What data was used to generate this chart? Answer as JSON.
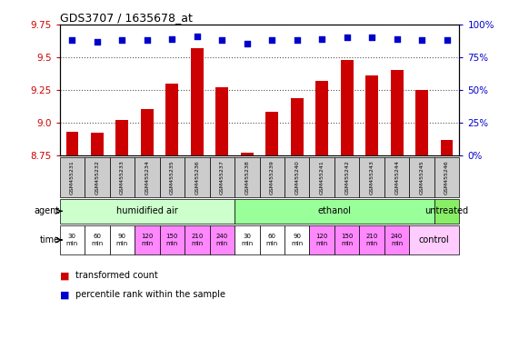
{
  "title": "GDS3707 / 1635678_at",
  "samples": [
    "GSM455231",
    "GSM455232",
    "GSM455233",
    "GSM455234",
    "GSM455235",
    "GSM455236",
    "GSM455237",
    "GSM455238",
    "GSM455239",
    "GSM455240",
    "GSM455241",
    "GSM455242",
    "GSM455243",
    "GSM455244",
    "GSM455245",
    "GSM455246"
  ],
  "bar_values": [
    8.93,
    8.92,
    9.02,
    9.1,
    9.3,
    9.57,
    9.27,
    8.77,
    9.08,
    9.19,
    9.32,
    9.48,
    9.36,
    9.4,
    9.25,
    8.87
  ],
  "percentile_values": [
    88,
    87,
    88,
    88,
    89,
    91,
    88,
    85,
    88,
    88,
    89,
    90,
    90,
    89,
    88,
    88
  ],
  "bar_color": "#cc0000",
  "dot_color": "#0000cc",
  "ylim_left": [
    8.75,
    9.75
  ],
  "ylim_right": [
    0,
    100
  ],
  "yticks_left": [
    8.75,
    9.0,
    9.25,
    9.5,
    9.75
  ],
  "yticks_right": [
    0,
    25,
    50,
    75,
    100
  ],
  "ytick_labels_right": [
    "0%",
    "25%",
    "50%",
    "75%",
    "100%"
  ],
  "agent_groups": [
    {
      "label": "humidified air",
      "start": 0,
      "end": 7,
      "color": "#ccffcc"
    },
    {
      "label": "ethanol",
      "start": 7,
      "end": 15,
      "color": "#99ff99"
    },
    {
      "label": "untreated",
      "start": 15,
      "end": 16,
      "color": "#88ee66"
    }
  ],
  "time_colors": [
    "#ffffff",
    "#ffffff",
    "#ffffff",
    "#ff88ff",
    "#ff88ff",
    "#ff88ff",
    "#ff88ff",
    "#ffffff",
    "#ffffff",
    "#ffffff",
    "#ff88ff",
    "#ff88ff",
    "#ff88ff",
    "#ff88ff",
    "#ffccff",
    "#ffccff"
  ],
  "time_labels": [
    "30\nmin",
    "60\nmin",
    "90\nmin",
    "120\nmin",
    "150\nmin",
    "210\nmin",
    "240\nmin",
    "30\nmin",
    "60\nmin",
    "90\nmin",
    "120\nmin",
    "150\nmin",
    "210\nmin",
    "240\nmin",
    "control",
    ""
  ],
  "sample_box_color": "#cccccc",
  "grid_color": "#888888",
  "bg_color": "#ffffff",
  "bar_width": 0.5
}
